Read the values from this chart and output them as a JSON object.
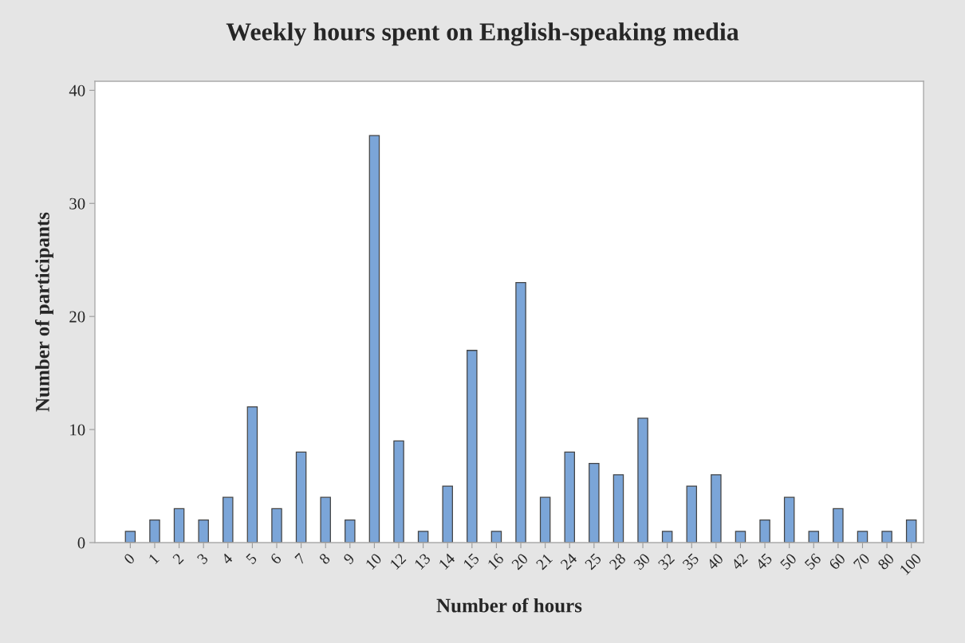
{
  "chart_data": {
    "type": "bar",
    "title": "Weekly hours spent on English-speaking media",
    "xlabel": "Number of hours",
    "ylabel": "Number of participants",
    "categories": [
      "0",
      "1",
      "2",
      "3",
      "4",
      "5",
      "6",
      "7",
      "8",
      "9",
      "10",
      "12",
      "13",
      "14",
      "15",
      "16",
      "20",
      "21",
      "24",
      "25",
      "28",
      "30",
      "32",
      "35",
      "40",
      "42",
      "45",
      "50",
      "56",
      "60",
      "70",
      "80",
      "100"
    ],
    "values": [
      1,
      2,
      3,
      2,
      4,
      12,
      3,
      8,
      4,
      2,
      36,
      9,
      1,
      5,
      17,
      1,
      23,
      4,
      8,
      7,
      6,
      11,
      1,
      5,
      6,
      1,
      2,
      4,
      1,
      3,
      1,
      1,
      2
    ],
    "color": "#7ba5d8",
    "ylim": [
      0,
      40.8
    ],
    "yticks": [
      0,
      10,
      20,
      30,
      40
    ],
    "grid": false,
    "legend": false
  }
}
